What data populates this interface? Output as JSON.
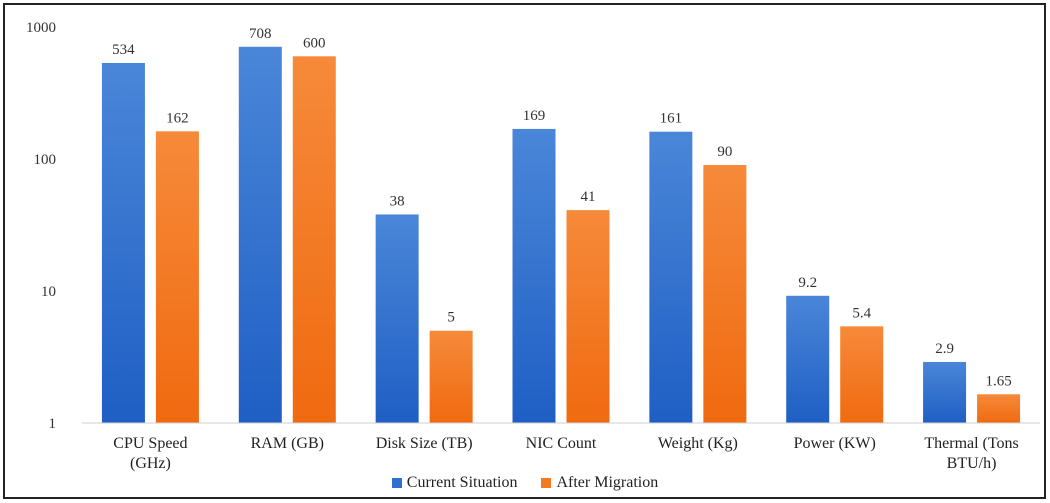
{
  "chart_data": {
    "type": "bar",
    "title": "",
    "xlabel": "",
    "ylabel": "",
    "yscale": "log",
    "ylim": [
      1,
      1000
    ],
    "yticks": [
      1,
      10,
      100,
      1000
    ],
    "ytick_labels": [
      "1",
      "10",
      "100",
      "1000"
    ],
    "grid": false,
    "legend_position": "bottom",
    "categories": [
      [
        "CPU Speed",
        "(GHz)"
      ],
      [
        "RAM (GB)"
      ],
      [
        "Disk Size (TB)"
      ],
      [
        "NIC Count"
      ],
      [
        "Weight (Kg)"
      ],
      [
        "Power (KW)"
      ],
      [
        "Thermal (Tons",
        "BTU/h)"
      ]
    ],
    "series": [
      {
        "name": "Current Situation",
        "color": "#2f6fcf",
        "values": [
          534,
          708,
          38,
          169,
          161,
          9.2,
          2.9
        ],
        "labels": [
          "534",
          "708",
          "38",
          "169",
          "161",
          "9.2",
          "2.9"
        ]
      },
      {
        "name": "After Migration",
        "color": "#f37a1f",
        "values": [
          162,
          600,
          5,
          41,
          90,
          5.4,
          1.65
        ],
        "labels": [
          "162",
          "600",
          "5",
          "41",
          "90",
          "5.4",
          "1.65"
        ]
      }
    ]
  }
}
